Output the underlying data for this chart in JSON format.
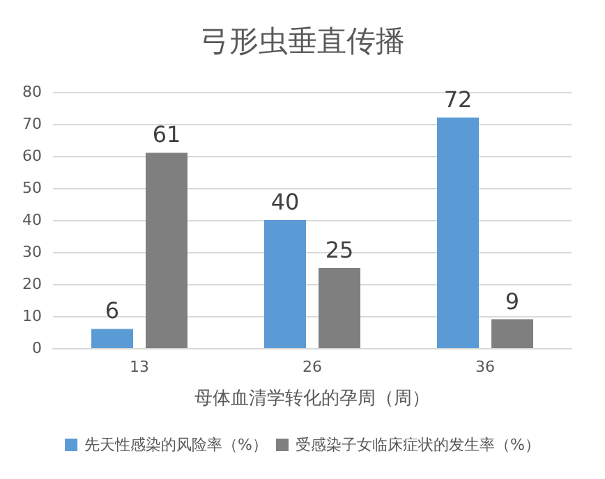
{
  "chart_data": {
    "type": "bar",
    "title": "弓形虫垂直传播",
    "xlabel": "母体血清学转化的孕周（周）",
    "categories": [
      "13",
      "26",
      "36"
    ],
    "series": [
      {
        "name": "先天性感染的风险率（%）",
        "color": "#5b9bd5",
        "values": [
          6,
          40,
          72
        ]
      },
      {
        "name": "受感染子女临床症状的发生率（%）",
        "color": "#7f7f7f",
        "values": [
          61,
          25,
          9
        ]
      }
    ],
    "ylim": [
      0,
      80
    ],
    "yticks": [
      0,
      10,
      20,
      30,
      40,
      50,
      60,
      70,
      80
    ],
    "grid": "y",
    "legend": "bottom",
    "data_labels": true
  }
}
